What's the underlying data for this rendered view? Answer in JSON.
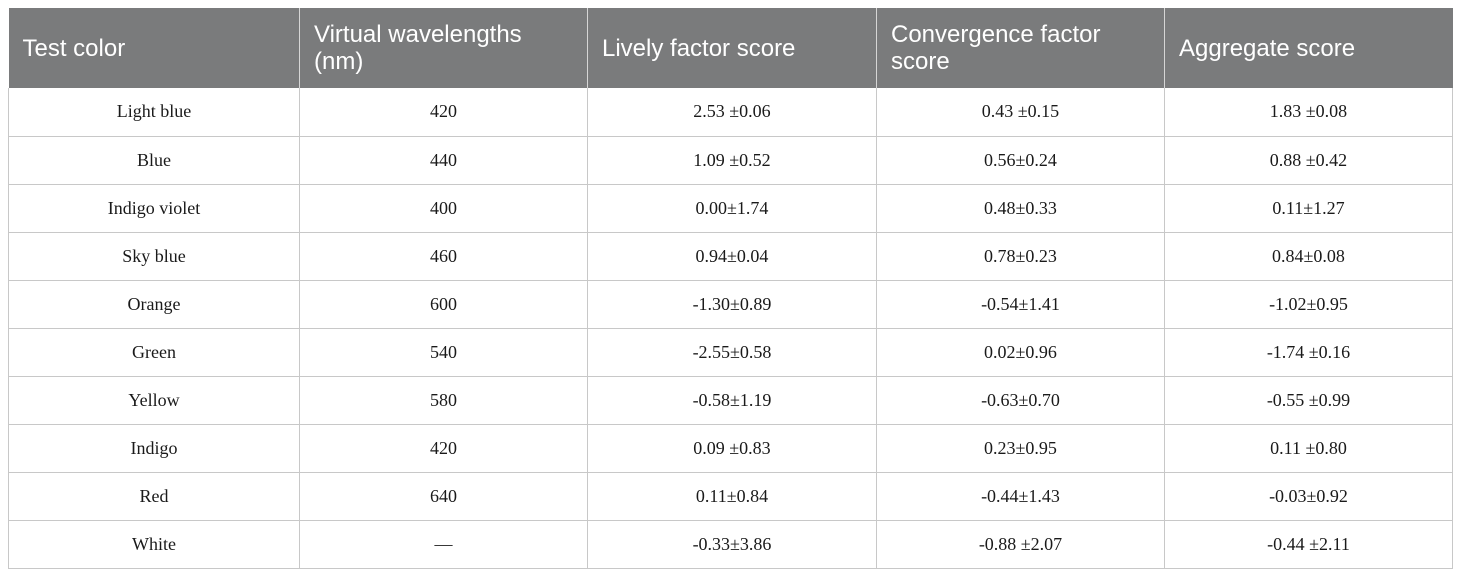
{
  "table": {
    "headers": [
      "Test color",
      "Virtual wavelengths (nm)",
      "Lively factor score",
      "Convergence factor score",
      "Aggregate score"
    ],
    "rows": [
      [
        "Light blue",
        "420",
        "2.53 ±0.06",
        "0.43 ±0.15",
        "1.83 ±0.08"
      ],
      [
        "Blue",
        "440",
        "1.09 ±0.52",
        "0.56±0.24",
        "0.88 ±0.42"
      ],
      [
        "Indigo violet",
        "400",
        "0.00±1.74",
        "0.48±0.33",
        "0.11±1.27"
      ],
      [
        "Sky blue",
        "460",
        "0.94±0.04",
        "0.78±0.23",
        "0.84±0.08"
      ],
      [
        "Orange",
        "600",
        "-1.30±0.89",
        "-0.54±1.41",
        "-1.02±0.95"
      ],
      [
        "Green",
        "540",
        "-2.55±0.58",
        "0.02±0.96",
        "-1.74 ±0.16"
      ],
      [
        "Yellow",
        "580",
        "-0.58±1.19",
        "-0.63±0.70",
        "-0.55 ±0.99"
      ],
      [
        "Indigo",
        "420",
        "0.09 ±0.83",
        "0.23±0.95",
        "0.11 ±0.80"
      ],
      [
        "Red",
        "640",
        "0.11±0.84",
        "-0.44±1.43",
        "-0.03±0.92"
      ],
      [
        "White",
        "—",
        "-0.33±3.86",
        "-0.88 ±2.07",
        "-0.44 ±2.11"
      ]
    ]
  },
  "colors": {
    "header_bg": "#7a7b7c",
    "header_text": "#ffffff",
    "grid": "#c8c8c8"
  }
}
